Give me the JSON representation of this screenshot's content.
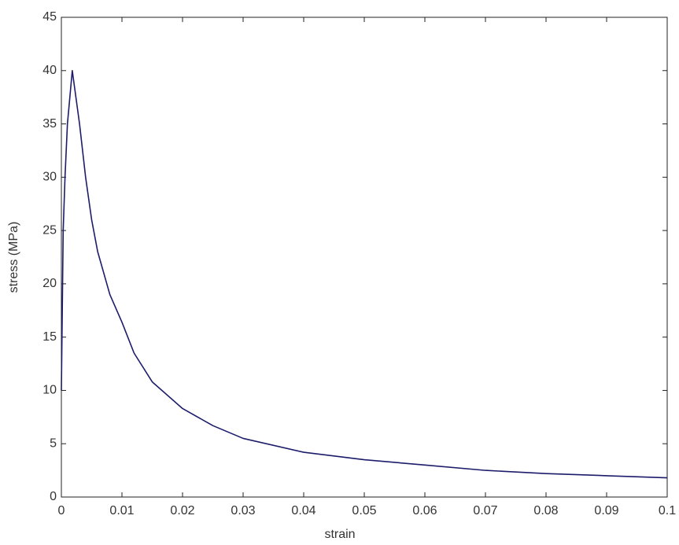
{
  "chart_data": {
    "type": "line",
    "xlabel": "strain",
    "ylabel": "stress (MPa)",
    "x": [
      0,
      0.0003,
      0.0006,
      0.001,
      0.0018,
      0.003,
      0.004,
      0.005,
      0.006,
      0.008,
      0.01,
      0.012,
      0.015,
      0.02,
      0.025,
      0.03,
      0.04,
      0.05,
      0.06,
      0.07,
      0.08,
      0.09,
      0.1
    ],
    "series": [
      {
        "color": "#1c1c6b",
        "values": [
          10,
          25,
          30,
          35,
          40,
          35,
          30,
          26,
          23,
          19,
          16.4,
          13.5,
          10.8,
          8.3,
          6.7,
          5.5,
          4.2,
          3.5,
          3.0,
          2.5,
          2.2,
          2.0,
          1.8
        ]
      }
    ],
    "xlim": [
      0,
      0.1
    ],
    "xticks": [
      0,
      0.01,
      0.02,
      0.03,
      0.04,
      0.05,
      0.06,
      0.07,
      0.08,
      0.09,
      0.1
    ],
    "ylim": [
      0,
      45
    ],
    "yticks": [
      0,
      5,
      10,
      15,
      20,
      25,
      30,
      35,
      40,
      45
    ],
    "grid": false
  }
}
